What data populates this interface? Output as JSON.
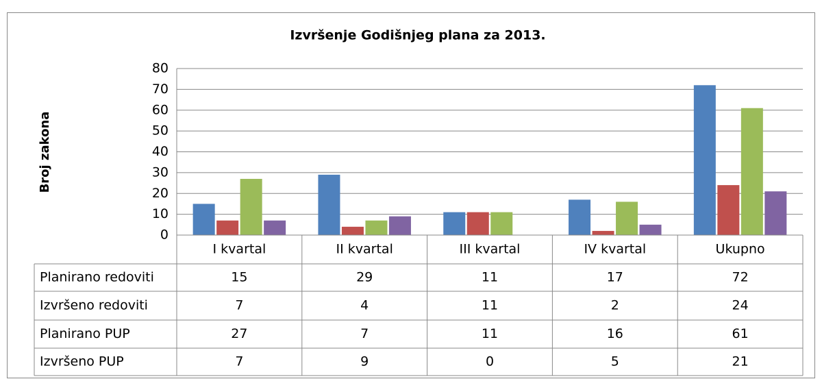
{
  "chart_data": {
    "type": "bar",
    "title": "Izvršenje Godišnjeg plana za 2013.",
    "y_label": "Broj zakona",
    "categories": [
      "I kvartal",
      "II kvartal",
      "III kvartal",
      "IV kvartal",
      "Ukupno"
    ],
    "series": [
      {
        "name": "Planirano redoviti",
        "color": "#4f81bd",
        "values": [
          15,
          29,
          11,
          17,
          72
        ]
      },
      {
        "name": "Izvršeno redoviti",
        "color": "#c0504d",
        "values": [
          7,
          4,
          11,
          2,
          24
        ]
      },
      {
        "name": "Planirano PUP",
        "color": "#9bbb59",
        "values": [
          27,
          7,
          11,
          16,
          61
        ]
      },
      {
        "name": "Izvršeno PUP",
        "color": "#8064a2",
        "values": [
          7,
          9,
          0,
          5,
          21
        ]
      }
    ],
    "ylim": [
      0,
      80
    ],
    "yticks": [
      0,
      10,
      20,
      30,
      40,
      50,
      60,
      70,
      80
    ],
    "grid": true
  }
}
